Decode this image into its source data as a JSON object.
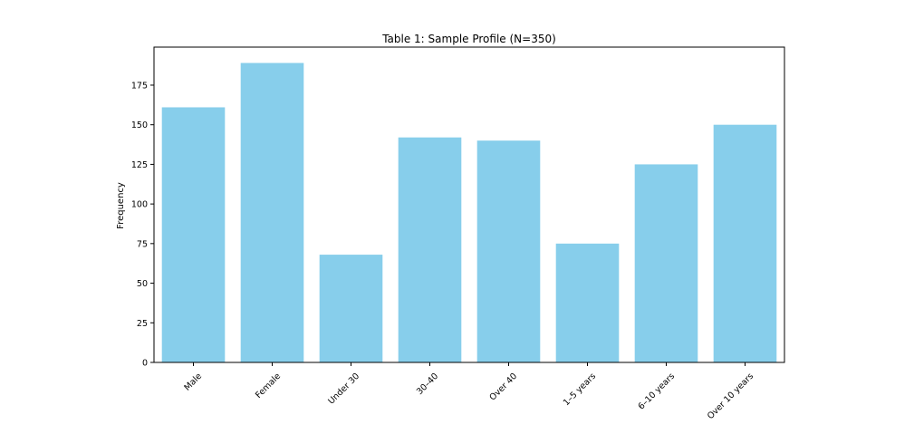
{
  "chart_data": {
    "type": "bar",
    "title": "Table 1: Sample Profile (N=350)",
    "xlabel": "",
    "ylabel": "Frequency",
    "categories": [
      "Male",
      "Female",
      "Under 30",
      "30–40",
      "Over 40",
      "1–5 years",
      "6–10 years",
      "Over 10 years"
    ],
    "values": [
      161,
      189,
      68,
      142,
      140,
      75,
      125,
      150
    ],
    "ylim": [
      0,
      199
    ],
    "yticks": [
      0,
      25,
      50,
      75,
      100,
      125,
      150,
      175
    ],
    "grid": false,
    "bar_color": "#87CEEB",
    "x_tick_rotation_deg": 45
  }
}
